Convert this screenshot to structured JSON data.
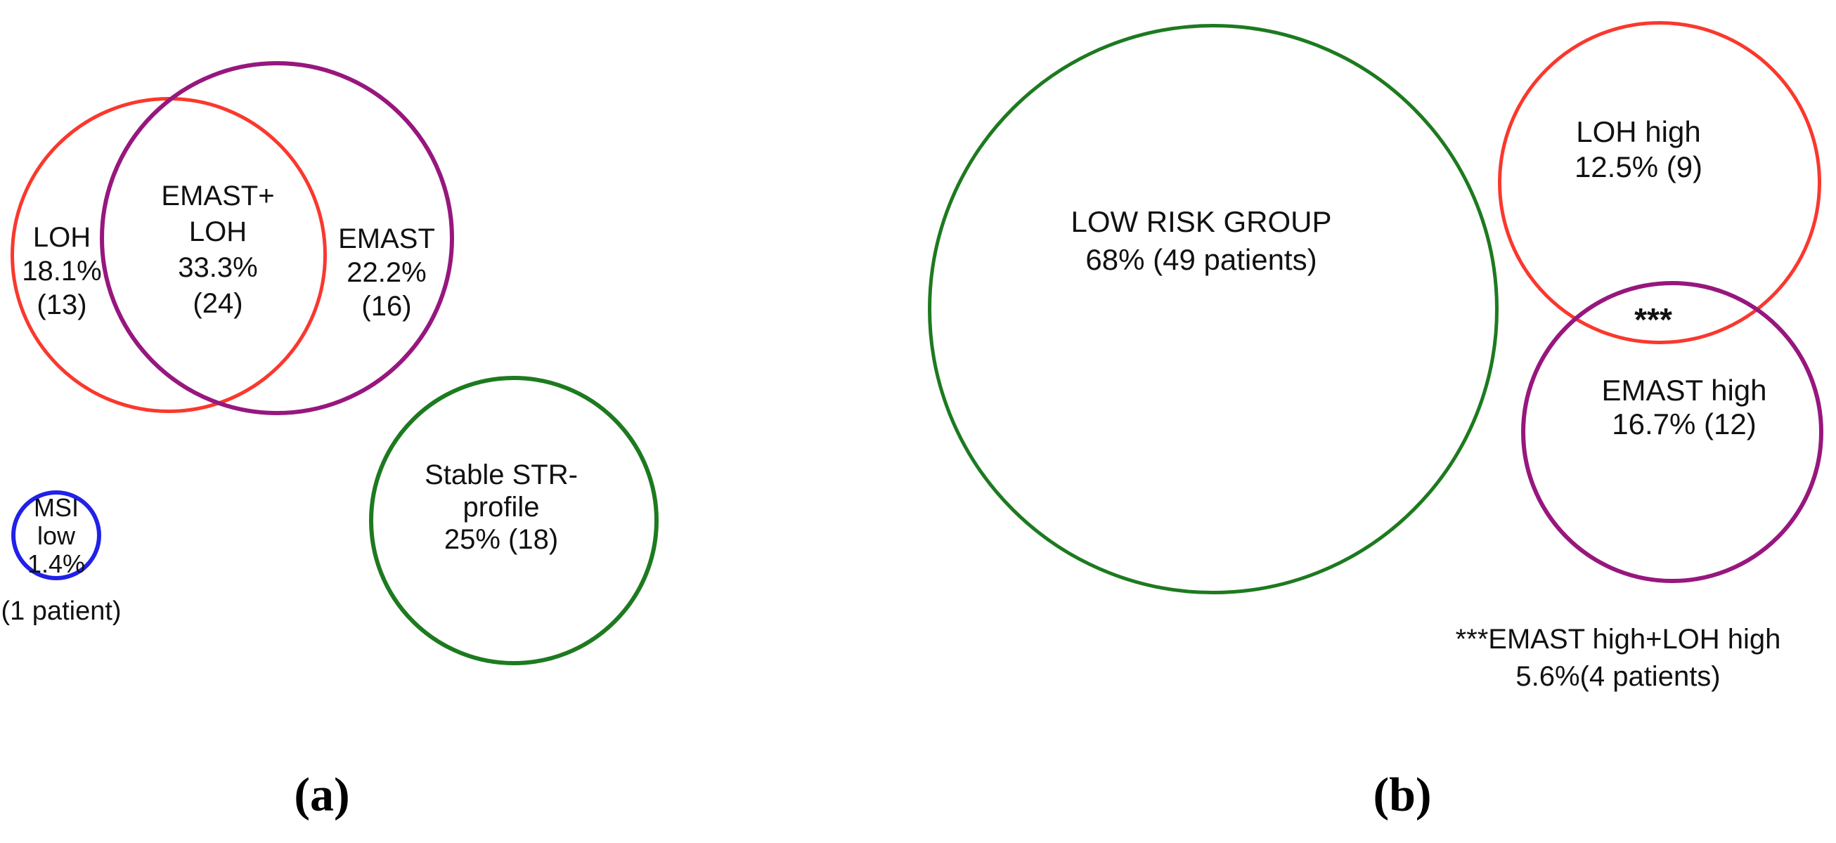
{
  "colors": {
    "red": "#fa382d",
    "purple": "#97177e",
    "green": "#1d7a1f",
    "blue": "#2121e8",
    "text": "#111111"
  },
  "panel_a": {
    "caption": "(a)",
    "groups": {
      "loh": {
        "lines": [
          "LOH",
          "18.1%",
          "(13)"
        ],
        "percent": "18.1%",
        "count": 13
      },
      "emast_loh_overlap": {
        "lines": [
          "EMAST+",
          "LOH",
          "33.3%",
          "(24)"
        ],
        "percent": "33.3%",
        "count": 24
      },
      "emast": {
        "lines": [
          "EMAST",
          "22.2%",
          "(16)"
        ],
        "percent": "22.2%",
        "count": 16
      },
      "msi_low": {
        "lines": [
          "MSI",
          "low",
          "1.4%"
        ],
        "percent": "1.4%",
        "note": "(1 patient)",
        "count": 1
      },
      "stable_str": {
        "lines": [
          "Stable STR-",
          "profile",
          "25% (18)"
        ],
        "percent": "25%",
        "count": 18
      }
    }
  },
  "panel_b": {
    "caption": "(b)",
    "groups": {
      "low_risk": {
        "lines": [
          "LOW RISK GROUP",
          "68% (49 patients)"
        ],
        "percent": "68%",
        "count": 49
      },
      "loh_high": {
        "lines": [
          "LOH high",
          "12.5% (9)"
        ],
        "percent": "12.5%",
        "count": 9
      },
      "emast_high": {
        "lines": [
          "EMAST high",
          "16.7% (12)"
        ],
        "percent": "16.7%",
        "count": 12
      }
    },
    "overlap_marker": "***",
    "footnote": {
      "lines": [
        "***EMAST high+LOH high",
        "5.6%(4 patients)"
      ],
      "percent": "5.6%",
      "count": 4
    }
  }
}
